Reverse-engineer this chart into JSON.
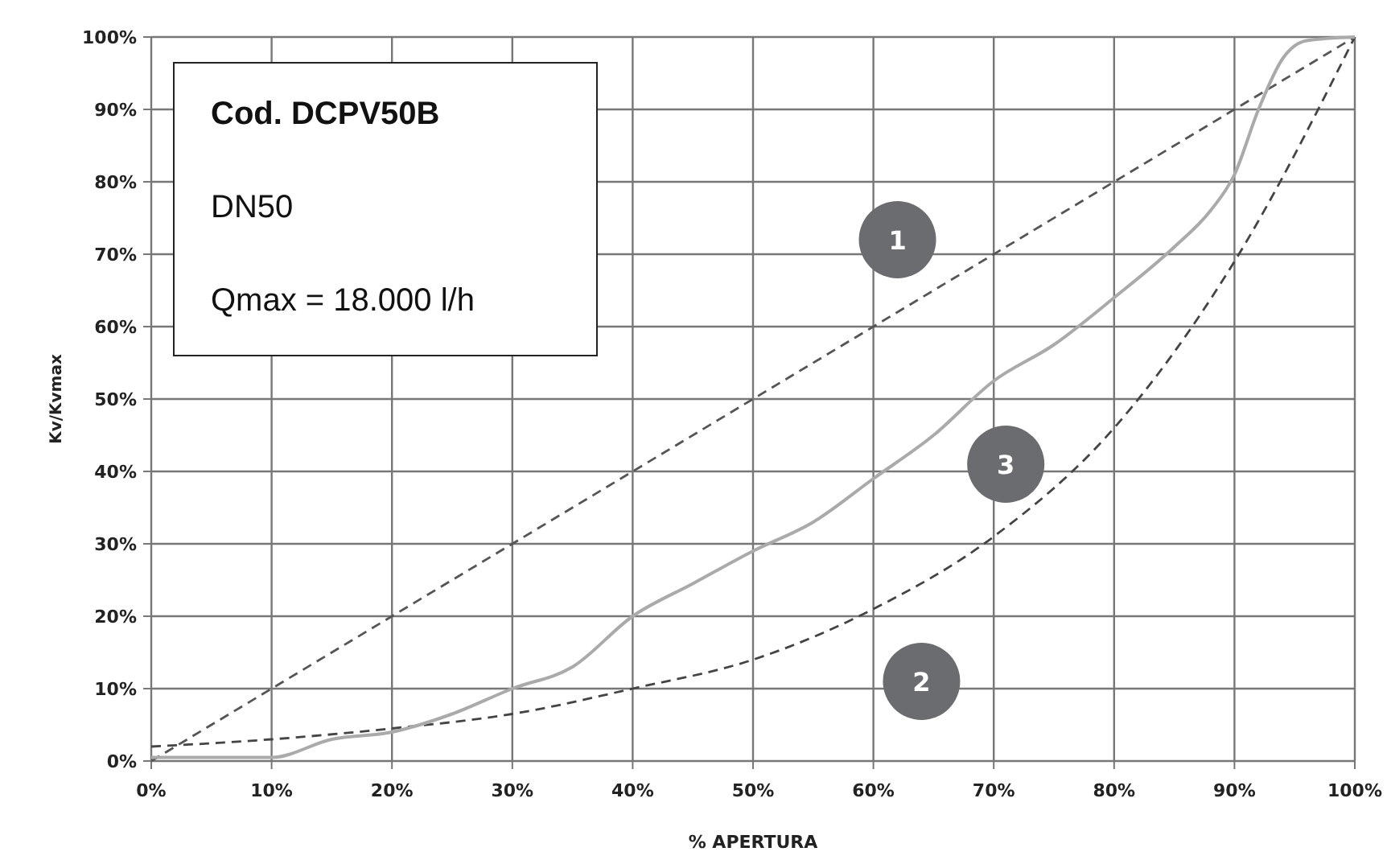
{
  "chart_data": {
    "type": "line",
    "xlabel": "% APERTURA",
    "ylabel": "Kv/Kvmax",
    "xlim": [
      0,
      100
    ],
    "ylim": [
      0,
      100
    ],
    "xticks": [
      {
        "value": 0,
        "label": "0%"
      },
      {
        "value": 10,
        "label": "10%"
      },
      {
        "value": 20,
        "label": "20%"
      },
      {
        "value": 30,
        "label": "30%"
      },
      {
        "value": 40,
        "label": "40%"
      },
      {
        "value": 50,
        "label": "50%"
      },
      {
        "value": 60,
        "label": "60%"
      },
      {
        "value": 70,
        "label": "70%"
      },
      {
        "value": 80,
        "label": "80%"
      },
      {
        "value": 90,
        "label": "90%"
      },
      {
        "value": 100,
        "label": "100%"
      }
    ],
    "yticks": [
      {
        "value": 0,
        "label": "0%"
      },
      {
        "value": 10,
        "label": "10%"
      },
      {
        "value": 20,
        "label": "20%"
      },
      {
        "value": 30,
        "label": "30%"
      },
      {
        "value": 40,
        "label": "40%"
      },
      {
        "value": 50,
        "label": "50%"
      },
      {
        "value": 60,
        "label": "60%"
      },
      {
        "value": 70,
        "label": "70%"
      },
      {
        "value": 80,
        "label": "80%"
      },
      {
        "value": 90,
        "label": "90%"
      },
      {
        "value": 100,
        "label": "100%"
      }
    ],
    "grid": true,
    "marker": "none",
    "series": [
      {
        "color": "#555555",
        "line_style": "dashed",
        "x": [
          0,
          100
        ],
        "values": [
          0,
          100
        ]
      },
      {
        "color": "#444444",
        "line_style": "dashed",
        "x": [
          0,
          10,
          20,
          30,
          40,
          50,
          60,
          70,
          80,
          90,
          100
        ],
        "values": [
          2,
          3,
          4.5,
          6.5,
          10,
          14,
          21,
          31,
          46,
          69,
          100
        ]
      },
      {
        "color": "#aaaaaa",
        "line_style": "solid",
        "x": [
          0,
          10,
          15,
          20,
          25,
          30,
          35,
          40,
          45,
          50,
          55,
          60,
          65,
          70,
          75,
          80,
          85,
          88,
          90,
          92,
          94,
          96,
          100
        ],
        "values": [
          0.5,
          0.5,
          3,
          4,
          6.5,
          10,
          13,
          20,
          24.5,
          29,
          33,
          39,
          45,
          52.5,
          57.5,
          64,
          71,
          76,
          81,
          90,
          97,
          99.5,
          100
        ]
      }
    ],
    "annotations": [
      "Cod. DCPV50B",
      "DN50",
      "Qmax = 18.000 l/h",
      "1",
      "3",
      "2"
    ]
  }
}
